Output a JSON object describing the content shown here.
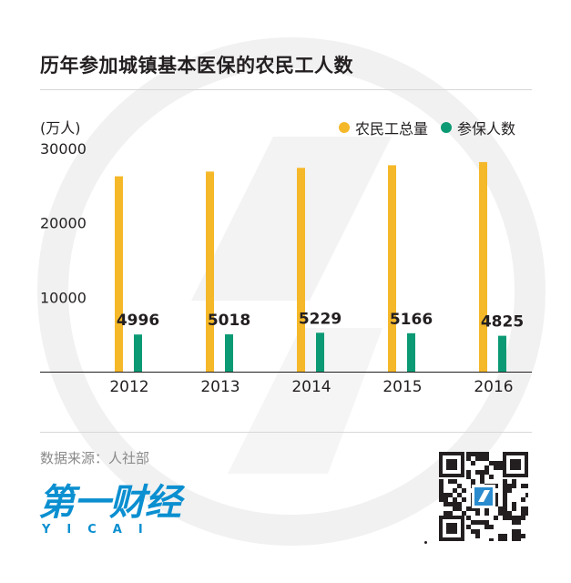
{
  "header": {
    "title": "历年参加城镇基本医保的农民工人数"
  },
  "unit_label": "(万人)",
  "legend": [
    {
      "label": "农民工总量",
      "color": "#f5b829"
    },
    {
      "label": "参保人数",
      "color": "#0c9a74"
    }
  ],
  "chart_data": {
    "type": "bar",
    "categories": [
      "2012",
      "2013",
      "2014",
      "2015",
      "2016"
    ],
    "series": [
      {
        "name": "农民工总量",
        "values": [
          26261,
          26894,
          27395,
          27747,
          28171
        ],
        "color": "#f5b829"
      },
      {
        "name": "参保人数",
        "values": [
          4996,
          5018,
          5229,
          5166,
          4825
        ],
        "color": "#0c9a74"
      }
    ],
    "data_labels": [
      "4996",
      "5018",
      "5229",
      "5166",
      "4825"
    ],
    "yticks": [
      "30000",
      "20000",
      "10000"
    ],
    "ylim": [
      0,
      30000
    ],
    "ylabel": "(万人)",
    "grid": false,
    "legend_position": "top-right"
  },
  "footer": {
    "source": "数据来源：人社部",
    "logo_cn": "第一财经",
    "logo_en": "YICAI"
  }
}
